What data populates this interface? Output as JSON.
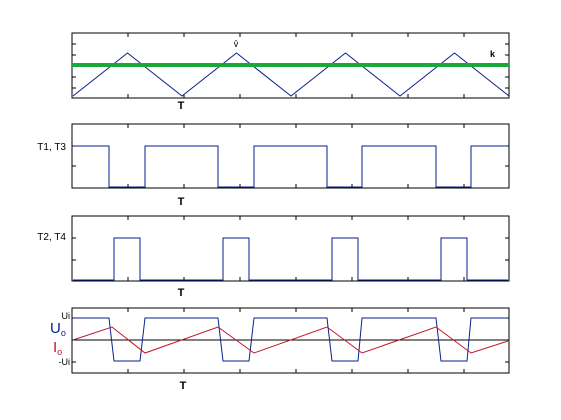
{
  "panels": [
    {
      "id": "carrier",
      "axis_label": "T",
      "peak_label": "v̂",
      "reference_label": "k",
      "reference_color": "#1aa838",
      "carrier_color": "#0a1f8f",
      "reference_level": 0.8,
      "carrier_period": 1.0,
      "cycles": 4
    },
    {
      "id": "t1t3",
      "label": "T1, T3",
      "axis_label": "T",
      "signal_color": "#0a1f8f"
    },
    {
      "id": "t2t4",
      "label": "T2, T4",
      "axis_label": "T",
      "signal_color": "#0a1f8f"
    },
    {
      "id": "output",
      "axis_label": "T",
      "pos_tick": "Ui",
      "neg_tick": "-Ui",
      "voltage_symbol": "U",
      "voltage_sub": "o",
      "current_symbol": "I",
      "current_sub": "o",
      "voltage_color": "#0a1f8f",
      "current_color": "#c0152a"
    }
  ]
}
